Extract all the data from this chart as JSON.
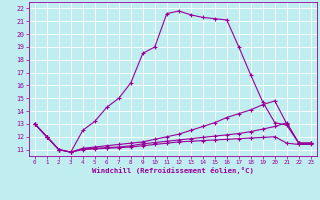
{
  "xlabel": "Windchill (Refroidissement éolien,°C)",
  "xlim": [
    -0.5,
    23.5
  ],
  "ylim": [
    10.5,
    22.5
  ],
  "yticks": [
    11,
    12,
    13,
    14,
    15,
    16,
    17,
    18,
    19,
    20,
    21,
    22
  ],
  "xticks": [
    0,
    1,
    2,
    3,
    4,
    5,
    6,
    7,
    8,
    9,
    10,
    11,
    12,
    13,
    14,
    15,
    16,
    17,
    18,
    19,
    20,
    21,
    22,
    23
  ],
  "bg_color": "#c0edf0",
  "grid_color": "#ffffff",
  "line_color": "#990099",
  "lines": [
    [
      13.0,
      12.0,
      11.0,
      10.8,
      12.5,
      13.2,
      14.3,
      15.0,
      16.2,
      18.5,
      19.0,
      21.6,
      21.8,
      21.5,
      21.3,
      21.2,
      21.1,
      19.0,
      16.8,
      14.7,
      13.1,
      12.9,
      11.5,
      11.5
    ],
    [
      13.0,
      12.0,
      11.0,
      10.8,
      11.1,
      11.2,
      11.3,
      11.4,
      11.5,
      11.6,
      11.8,
      12.0,
      12.2,
      12.5,
      12.8,
      13.1,
      13.5,
      13.8,
      14.1,
      14.5,
      14.8,
      13.0,
      11.5,
      11.5
    ],
    [
      13.0,
      12.0,
      11.0,
      10.8,
      11.0,
      11.05,
      11.1,
      11.15,
      11.2,
      11.3,
      11.4,
      11.5,
      11.6,
      11.65,
      11.7,
      11.75,
      11.8,
      11.85,
      11.9,
      11.95,
      12.0,
      11.5,
      11.4,
      11.4
    ],
    [
      13.0,
      12.0,
      11.0,
      10.8,
      11.05,
      11.1,
      11.15,
      11.2,
      11.3,
      11.45,
      11.55,
      11.65,
      11.75,
      11.85,
      11.95,
      12.05,
      12.15,
      12.25,
      12.4,
      12.6,
      12.8,
      13.1,
      11.5,
      11.5
    ]
  ]
}
